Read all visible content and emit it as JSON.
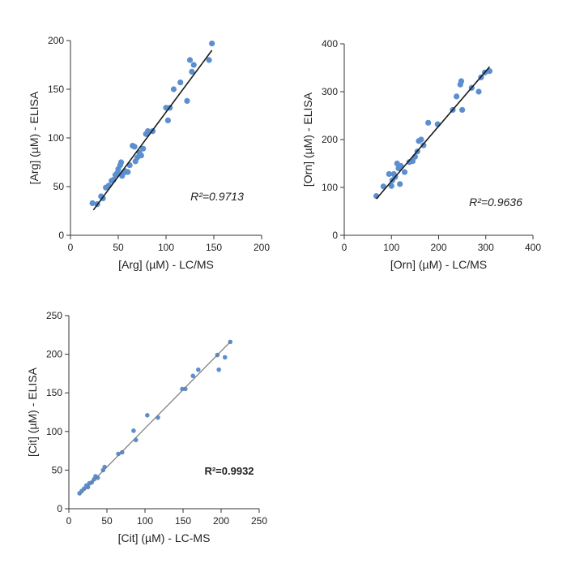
{
  "chart_data": [
    {
      "type": "scatter",
      "xlabel": "[Arg] (µM) - LC/MS",
      "ylabel": "[Arg] (µM) - ELISA",
      "annotation": "R²=0.9713",
      "xlim": [
        0,
        200
      ],
      "ylim": [
        0,
        200
      ],
      "xticks": [
        0,
        50,
        100,
        150,
        200
      ],
      "yticks": [
        0,
        50,
        100,
        150,
        200
      ],
      "point_color": "#5b8fd0",
      "line_color": "#1a1a1a",
      "trendline": [
        [
          24,
          26
        ],
        [
          148,
          190
        ]
      ],
      "points": [
        [
          23,
          33
        ],
        [
          28,
          32
        ],
        [
          32,
          40
        ],
        [
          34,
          38
        ],
        [
          37,
          49
        ],
        [
          40,
          51
        ],
        [
          43,
          56
        ],
        [
          45,
          57
        ],
        [
          47,
          62
        ],
        [
          49,
          64
        ],
        [
          50,
          68
        ],
        [
          52,
          72
        ],
        [
          53,
          75
        ],
        [
          54,
          61
        ],
        [
          55,
          64
        ],
        [
          57,
          66
        ],
        [
          58,
          65
        ],
        [
          60,
          65
        ],
        [
          62,
          72
        ],
        [
          65,
          92
        ],
        [
          67,
          91
        ],
        [
          68,
          76
        ],
        [
          70,
          80
        ],
        [
          72,
          85
        ],
        [
          74,
          82
        ],
        [
          76,
          89
        ],
        [
          79,
          104
        ],
        [
          81,
          107
        ],
        [
          86,
          107
        ],
        [
          100,
          131
        ],
        [
          102,
          118
        ],
        [
          104,
          131
        ],
        [
          108,
          150
        ],
        [
          115,
          157
        ],
        [
          122,
          138
        ],
        [
          125,
          180
        ],
        [
          127,
          168
        ],
        [
          129,
          175
        ],
        [
          145,
          180
        ],
        [
          148,
          197
        ]
      ]
    },
    {
      "type": "scatter",
      "xlabel": "[Orn] (µM) - LC/MS",
      "ylabel": "[Orn] (µM) - ELISA",
      "annotation": "R²=0.9636",
      "xlim": [
        0,
        400
      ],
      "ylim": [
        0,
        400
      ],
      "xticks": [
        0,
        100,
        200,
        300,
        400
      ],
      "yticks": [
        0,
        100,
        200,
        300,
        400
      ],
      "point_color": "#5b8fd0",
      "line_color": "#1a1a1a",
      "trendline": [
        [
          68,
          76
        ],
        [
          308,
          352
        ]
      ],
      "points": [
        [
          68,
          82
        ],
        [
          83,
          102
        ],
        [
          95,
          128
        ],
        [
          100,
          103
        ],
        [
          102,
          115
        ],
        [
          105,
          128
        ],
        [
          108,
          122
        ],
        [
          112,
          150
        ],
        [
          115,
          140
        ],
        [
          118,
          107
        ],
        [
          120,
          145
        ],
        [
          128,
          132
        ],
        [
          138,
          153
        ],
        [
          145,
          155
        ],
        [
          150,
          164
        ],
        [
          155,
          175
        ],
        [
          158,
          197
        ],
        [
          163,
          200
        ],
        [
          168,
          188
        ],
        [
          178,
          235
        ],
        [
          198,
          232
        ],
        [
          230,
          262
        ],
        [
          238,
          290
        ],
        [
          246,
          315
        ],
        [
          248,
          322
        ],
        [
          250,
          262
        ],
        [
          270,
          308
        ],
        [
          285,
          300
        ],
        [
          290,
          330
        ],
        [
          298,
          340
        ],
        [
          308,
          343
        ]
      ]
    },
    {
      "type": "scatter",
      "xlabel": "[Cit] (µM) - LC-MS",
      "ylabel": "[Cit] (µM) - ELISA",
      "annotation": "R²=0.9932",
      "xlim": [
        0,
        250
      ],
      "ylim": [
        0,
        250
      ],
      "xticks": [
        0,
        50,
        100,
        150,
        200,
        250
      ],
      "yticks": [
        0,
        50,
        100,
        150,
        200,
        250
      ],
      "point_color": "#5b8fd0",
      "line_color": "#7a7a7a",
      "trendline": [
        [
          14,
          18
        ],
        [
          213,
          217
        ]
      ],
      "points": [
        [
          14,
          20
        ],
        [
          17,
          23
        ],
        [
          20,
          26
        ],
        [
          23,
          30
        ],
        [
          25,
          28
        ],
        [
          27,
          33
        ],
        [
          30,
          34
        ],
        [
          33,
          38
        ],
        [
          35,
          42
        ],
        [
          38,
          40
        ],
        [
          45,
          50
        ],
        [
          47,
          54
        ],
        [
          65,
          71
        ],
        [
          70,
          73
        ],
        [
          85,
          101
        ],
        [
          88,
          89
        ],
        [
          103,
          121
        ],
        [
          117,
          118
        ],
        [
          149,
          155
        ],
        [
          153,
          155
        ],
        [
          163,
          172
        ],
        [
          170,
          180
        ],
        [
          195,
          199
        ],
        [
          197,
          180
        ],
        [
          205,
          196
        ],
        [
          212,
          216
        ]
      ]
    }
  ]
}
